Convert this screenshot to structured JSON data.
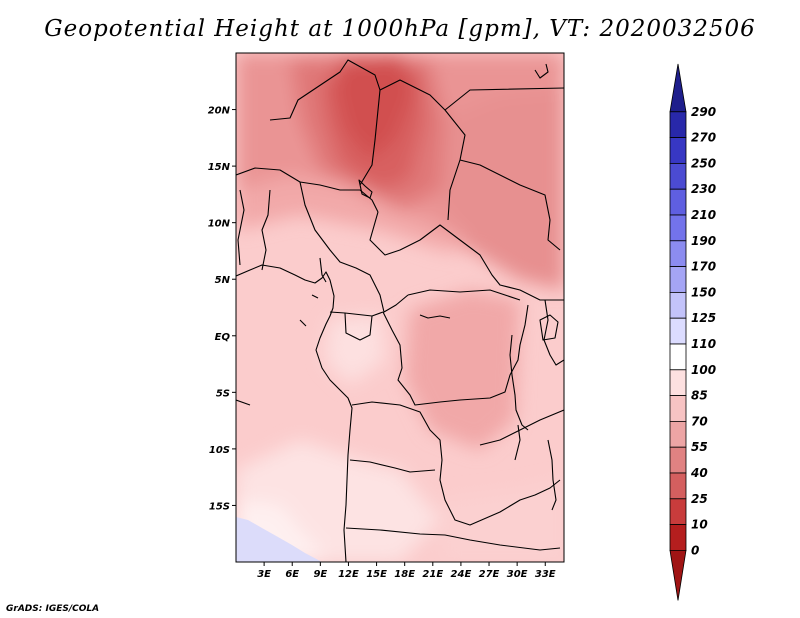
{
  "title": "Geopotential Height at 1000hPa [gpm], VT: 2020032506",
  "credit": "GrADS: IGES/COLA",
  "map": {
    "lon_range": [
      0,
      35
    ],
    "lat_range": [
      -20,
      25
    ],
    "lat_ticks": [
      {
        "value": 20,
        "label": "20N"
      },
      {
        "value": 15,
        "label": "15N"
      },
      {
        "value": 10,
        "label": "10N"
      },
      {
        "value": 5,
        "label": "5N"
      },
      {
        "value": 0,
        "label": "EQ"
      },
      {
        "value": -5,
        "label": "5S"
      },
      {
        "value": -10,
        "label": "10S"
      },
      {
        "value": -15,
        "label": "15S"
      }
    ],
    "lon_ticks": [
      {
        "value": 3,
        "label": "3E"
      },
      {
        "value": 6,
        "label": "6E"
      },
      {
        "value": 9,
        "label": "9E"
      },
      {
        "value": 12,
        "label": "12E"
      },
      {
        "value": 15,
        "label": "15E"
      },
      {
        "value": 18,
        "label": "18E"
      },
      {
        "value": 21,
        "label": "21E"
      },
      {
        "value": 24,
        "label": "24E"
      },
      {
        "value": 27,
        "label": "27E"
      },
      {
        "value": 30,
        "label": "30E"
      },
      {
        "value": 33,
        "label": "33E"
      }
    ]
  },
  "colorbar": {
    "levels": [
      "290",
      "270",
      "250",
      "230",
      "210",
      "190",
      "170",
      "150",
      "125",
      "110",
      "100",
      "85",
      "70",
      "55",
      "40",
      "25",
      "10",
      "0"
    ],
    "colors": [
      "#1e1e8c",
      "#2828aa",
      "#3737c3",
      "#4b4bd2",
      "#5f5fe1",
      "#7373eb",
      "#8c8cf0",
      "#a5a5f5",
      "#c3c3fa",
      "#dcdcff",
      "#ffffff",
      "#fde0e0",
      "#f7c3c3",
      "#eda5a5",
      "#e08282",
      "#d45f5f",
      "#c83c3c",
      "#b41e1e",
      "#a01414"
    ]
  },
  "chart_data": {
    "type": "heatmap",
    "title": "Geopotential Height at 1000hPa [gpm], VT: 2020032506",
    "variable": "Geopotential Height at 1000hPa",
    "units": "gpm",
    "valid_time": "2020032506",
    "lon_range": [
      0,
      35
    ],
    "lat_range": [
      -20,
      25
    ],
    "contour_levels": [
      0,
      10,
      25,
      40,
      55,
      70,
      85,
      100,
      110,
      125,
      150,
      170,
      190,
      210,
      230,
      250,
      270,
      290
    ],
    "field_samples": [
      {
        "lon": 12,
        "lat": 20,
        "value": 40
      },
      {
        "lon": 14,
        "lat": 17,
        "value": 45
      },
      {
        "lon": 10,
        "lat": 15,
        "value": 55
      },
      {
        "lon": 25,
        "lat": 15,
        "value": 70
      },
      {
        "lon": 28,
        "lat": 10,
        "value": 68
      },
      {
        "lon": 6,
        "lat": 12,
        "value": 80
      },
      {
        "lon": 22,
        "lat": 3,
        "value": 80
      },
      {
        "lon": 3,
        "lat": 0,
        "value": 95
      },
      {
        "lon": 15,
        "lat": -2,
        "value": 100
      },
      {
        "lon": 12,
        "lat": -8,
        "value": 95
      },
      {
        "lon": 25,
        "lat": -5,
        "value": 85
      },
      {
        "lon": 6,
        "lat": -13,
        "value": 108
      },
      {
        "lon": 4,
        "lat": -19,
        "value": 125
      }
    ]
  }
}
